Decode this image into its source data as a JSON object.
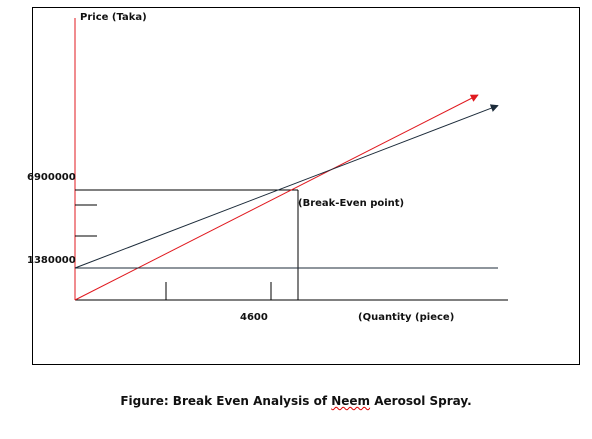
{
  "chart_data": {
    "type": "line",
    "title": "",
    "ylabel": "Price (Taka)",
    "xlabel": "(Quantity (piece)",
    "y_tick_labels": [
      "6900000",
      "1380000"
    ],
    "y_ticks": [
      6900000,
      1380000
    ],
    "x_tick_labels": [
      "4600"
    ],
    "x_ticks": [
      4600
    ],
    "annotation": "(Break-Even point)",
    "break_even": {
      "x": 4600,
      "y": 6900000
    },
    "fixed_cost": 1380000,
    "series": [
      {
        "values": [
          [
            0,
            0
          ],
          [
            4600,
            6900000
          ],
          [
            8200,
            12300000
          ]
        ],
        "color": "#e0191f"
      },
      {
        "values": [
          [
            0,
            1380000
          ],
          [
            4600,
            6900000
          ],
          [
            8600,
            11700000
          ]
        ],
        "color": "#1c2b3a"
      },
      {
        "values": [
          [
            0,
            1380000
          ],
          [
            8600,
            1380000
          ]
        ],
        "color": "#1c2b3a"
      }
    ],
    "grid": false,
    "legend": "none"
  },
  "figure": {
    "caption_prefix": "Figure: Break Even Analysis of ",
    "caption_word": "Neem",
    "caption_suffix": " Aerosol Spray."
  }
}
